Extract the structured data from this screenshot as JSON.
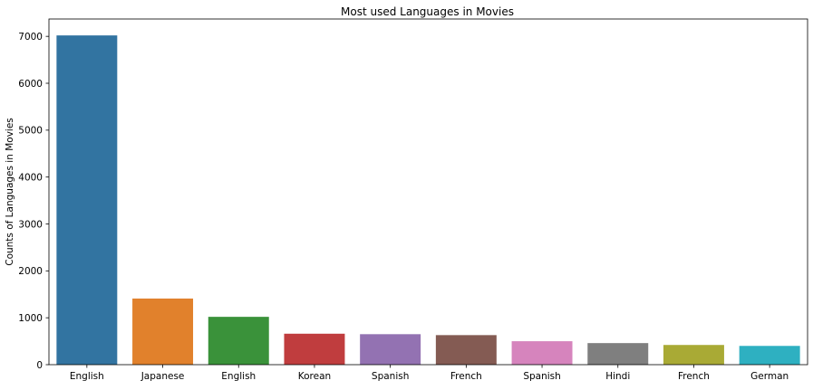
{
  "chart_data": {
    "type": "bar",
    "title": "Most used Languages in Movies",
    "xlabel": "",
    "ylabel": "Counts of Languages in Movies",
    "categories": [
      "English",
      "Japanese",
      "English",
      "Korean",
      "Spanish",
      "French",
      "Spanish",
      "Hindi",
      "French",
      "German"
    ],
    "values": [
      7020,
      1410,
      1020,
      660,
      650,
      630,
      500,
      460,
      420,
      400
    ],
    "colors": [
      "#3274a1",
      "#e1812c",
      "#3a923a",
      "#c03d3e",
      "#9372b2",
      "#845b53",
      "#d684bd",
      "#7f7f7f",
      "#a9aa35",
      "#2eb0c1"
    ],
    "yticks": [
      0,
      1000,
      2000,
      3000,
      4000,
      5000,
      6000,
      7000
    ],
    "ylim": [
      0,
      7370
    ],
    "grid": false,
    "legend": "none"
  }
}
